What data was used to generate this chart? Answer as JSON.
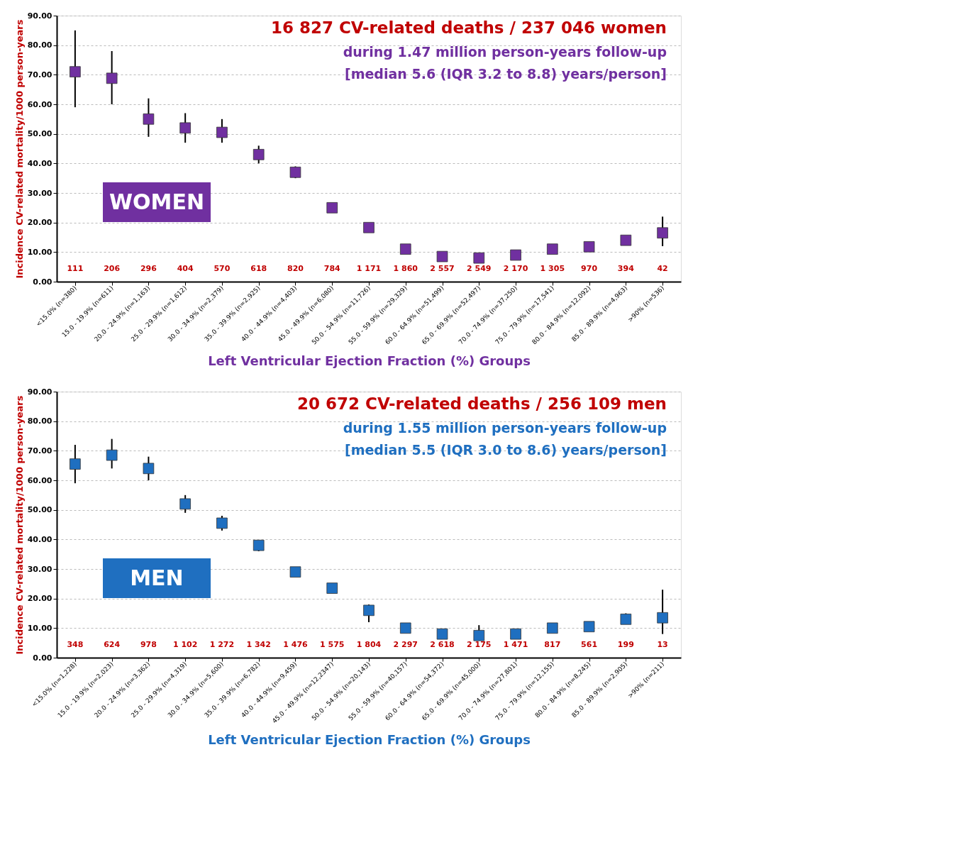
{
  "chart_data": [
    {
      "type": "scatter",
      "title": "16 827 CV-related deaths / 237 046 women",
      "subtitle": "during 1.47 million person-years follow-up\n[median 5.6 (IQR 3.2 to 8.8) years/person]",
      "xlabel": "Left Ventricular Ejection Fraction (%) Groups",
      "ylabel": "Incidence CV-related mortality/1000 person-years",
      "categories": [
        "<15.0% (n=380)",
        "15.0 - 19.9% (n=611)",
        "20.0 - 24.9% (n=1,163)",
        "25.0 - 29.9% (n=1,612)",
        "30.0 - 34.9% (n=2,379)",
        "35.0 - 39.9% (n=2,925)",
        "40.0 - 44.9% (n=4,403)",
        "45.0 - 49.9% (n=6,080)",
        "50.0 - 54.9% (n=11,726)",
        "55.0 - 59.9% (n=29,329)",
        "60.0 - 64.9% (n=51,499)",
        "65.0 - 69.9% (n=52,497)",
        "70.0 - 74.9% (n=37,250)",
        "75.0 - 79.9% (n=17,541)",
        "80.0 - 84.9% (n=12,092)",
        "85.0 - 89.9% (n=4,963)",
        ">90% (n=536)"
      ],
      "series": [
        {
          "color": "#7030a0",
          "values": [
            71,
            68.8,
            55,
            52,
            50.5,
            43,
            37,
            25,
            18.3,
            11,
            8.5,
            8,
            9,
            11,
            11.8,
            14,
            16.5
          ],
          "errors": [
            [
              59,
              85
            ],
            [
              60,
              78
            ],
            [
              49,
              62
            ],
            [
              47,
              57
            ],
            [
              47,
              55
            ],
            [
              40,
              46
            ],
            [
              35,
              39
            ],
            null,
            [
              17,
              19.5
            ],
            null,
            null,
            null,
            null,
            null,
            [
              10.8,
              13
            ],
            [
              12.5,
              15.5
            ],
            [
              12,
              22
            ]
          ]
        }
      ],
      "annotations": [
        "WOMEN",
        "111",
        "206",
        "296",
        "404",
        "570",
        "618",
        "820",
        "784",
        "1 171",
        "1 860",
        "2 557",
        "2 549",
        "2 170",
        "1 305",
        "970",
        "394",
        "42"
      ],
      "ylim": [
        0,
        90
      ],
      "yticks": [
        {
          "value": 0,
          "label": "0.00"
        },
        {
          "value": 10,
          "label": "10.00"
        },
        {
          "value": 20,
          "label": "20.00"
        },
        {
          "value": 30,
          "label": "30.00"
        },
        {
          "value": 40,
          "label": "40.00"
        },
        {
          "value": 50,
          "label": "50.00"
        },
        {
          "value": 60,
          "label": "60.00"
        },
        {
          "value": 70,
          "label": "70.00"
        },
        {
          "value": 80,
          "label": "80.00"
        },
        {
          "value": 90,
          "label": "90.00"
        }
      ],
      "grid": "y",
      "marker": "square"
    },
    {
      "type": "scatter",
      "title": "20 672 CV-related deaths / 256 109 men",
      "subtitle": "during 1.55 million person-years follow-up\n[median 5.5 (IQR 3.0 to 8.6) years/person]",
      "xlabel": "Left Ventricular Ejection Fraction (%) Groups",
      "ylabel": "Incidence CV-related mortality/1000 person-years",
      "categories": [
        "<15.0% (n=1,228)",
        "15.0 - 19.9% (n=2,023)",
        "20.0 - 24.9% (n=3,362)",
        "25.0 - 29.9% (n=4,319)",
        "30.0 - 34.9% (n=5,600)",
        "35.0 - 39.9% (n=6,782)",
        "40.0 - 44.9% (n=9,459)",
        "45.0 - 49.9% (n=12,2347)",
        "50.0 - 54.9% (n=20,143)",
        "55.0 - 59.9% (n=40,157)",
        "60.0 - 64.9% (n=54,372)",
        "65.0 - 69.9% (n=45,000)",
        "70.0 - 74.9% (n=27,801)",
        "75.0 - 79.9% (n=12,155)",
        "80.0 - 84.9% (n=8,245)",
        "85.0 - 89.9% (n=2,905)",
        ">90% (n=211)"
      ],
      "series": [
        {
          "color": "#1f6fc0",
          "values": [
            65.5,
            68.5,
            64,
            52,
            45.5,
            38,
            29,
            23.5,
            16,
            10,
            8,
            7.5,
            8,
            10,
            10.5,
            13,
            13.5
          ],
          "errors": [
            [
              59,
              72
            ],
            [
              64,
              74
            ],
            [
              60,
              68
            ],
            [
              49,
              55
            ],
            [
              43,
              48
            ],
            [
              36,
              39.5
            ],
            null,
            null,
            [
              12,
              18
            ],
            null,
            null,
            [
              6.5,
              11
            ],
            null,
            null,
            null,
            [
              11.5,
              15
            ],
            [
              8,
              23
            ]
          ]
        }
      ],
      "annotations": [
        "MEN",
        "348",
        "624",
        "978",
        "1 102",
        "1 272",
        "1 342",
        "1 476",
        "1 575",
        "1 804",
        "2 297",
        "2 618",
        "2 175",
        "1 471",
        "817",
        "561",
        "199",
        "13"
      ],
      "ylim": [
        0,
        90
      ],
      "yticks": [
        {
          "value": 0,
          "label": "0.00"
        },
        {
          "value": 10,
          "label": "10.00"
        },
        {
          "value": 20,
          "label": "20.00"
        },
        {
          "value": 30,
          "label": "30.00"
        },
        {
          "value": 40,
          "label": "40.00"
        },
        {
          "value": 50,
          "label": "50.00"
        },
        {
          "value": 60,
          "label": "60.00"
        },
        {
          "value": 70,
          "label": "70.00"
        },
        {
          "value": 80,
          "label": "80.00"
        },
        {
          "value": 90,
          "label": "90.00"
        }
      ],
      "grid": "y",
      "marker": "square"
    }
  ]
}
